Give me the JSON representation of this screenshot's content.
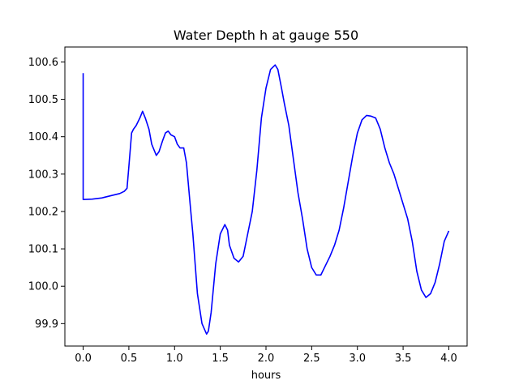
{
  "chart_data": {
    "type": "line",
    "title": "Water Depth h at gauge 550",
    "xlabel": "hours",
    "ylabel": "",
    "xlim": [
      -0.2,
      4.2
    ],
    "ylim": [
      99.84,
      100.64
    ],
    "xticks": [
      0.0,
      0.5,
      1.0,
      1.5,
      2.0,
      2.5,
      3.0,
      3.5,
      4.0
    ],
    "xtick_labels": [
      "0.0",
      "0.5",
      "1.0",
      "1.5",
      "2.0",
      "2.5",
      "3.0",
      "3.5",
      "4.0"
    ],
    "yticks": [
      99.9,
      100.0,
      100.1,
      100.2,
      100.3,
      100.4,
      100.5,
      100.6
    ],
    "ytick_labels": [
      "99.9",
      "100.0",
      "100.1",
      "100.2",
      "100.3",
      "100.4",
      "100.5",
      "100.6"
    ],
    "grid": false,
    "series": [
      {
        "color": "#0000ff",
        "x": [
          0.0,
          0.0,
          0.1,
          0.2,
          0.3,
          0.4,
          0.45,
          0.48,
          0.5,
          0.53,
          0.55,
          0.58,
          0.62,
          0.65,
          0.68,
          0.72,
          0.75,
          0.8,
          0.83,
          0.87,
          0.9,
          0.93,
          0.96,
          1.0,
          1.03,
          1.06,
          1.1,
          1.13,
          1.17,
          1.2,
          1.25,
          1.3,
          1.35,
          1.37,
          1.4,
          1.45,
          1.5,
          1.55,
          1.58,
          1.6,
          1.65,
          1.7,
          1.75,
          1.8,
          1.85,
          1.9,
          1.95,
          2.0,
          2.05,
          2.1,
          2.13,
          2.17,
          2.2,
          2.25,
          2.3,
          2.35,
          2.4,
          2.45,
          2.5,
          2.55,
          2.6,
          2.65,
          2.7,
          2.75,
          2.8,
          2.85,
          2.9,
          2.95,
          3.0,
          3.05,
          3.1,
          3.15,
          3.2,
          3.25,
          3.3,
          3.35,
          3.4,
          3.45,
          3.5,
          3.55,
          3.6,
          3.65,
          3.7,
          3.75,
          3.8,
          3.85,
          3.9,
          3.95,
          4.0
        ],
        "y": [
          100.57,
          100.232,
          100.233,
          100.236,
          100.242,
          100.248,
          100.254,
          100.262,
          100.32,
          100.41,
          100.42,
          100.43,
          100.45,
          100.468,
          100.45,
          100.42,
          100.38,
          100.35,
          100.36,
          100.39,
          100.41,
          100.415,
          100.405,
          100.4,
          100.38,
          100.37,
          100.37,
          100.33,
          100.22,
          100.14,
          99.98,
          99.9,
          99.872,
          99.88,
          99.93,
          100.06,
          100.14,
          100.165,
          100.15,
          100.11,
          100.075,
          100.065,
          100.08,
          100.14,
          100.2,
          100.31,
          100.45,
          100.53,
          100.58,
          100.592,
          100.58,
          100.53,
          100.49,
          100.43,
          100.34,
          100.25,
          100.18,
          100.1,
          100.05,
          100.03,
          100.03,
          100.055,
          100.08,
          100.11,
          100.15,
          100.21,
          100.28,
          100.35,
          100.41,
          100.445,
          100.457,
          100.455,
          100.45,
          100.42,
          100.37,
          100.33,
          100.3,
          100.26,
          100.22,
          100.18,
          100.12,
          100.04,
          99.99,
          99.97,
          99.98,
          100.01,
          100.06,
          100.12,
          100.148
        ]
      }
    ]
  }
}
